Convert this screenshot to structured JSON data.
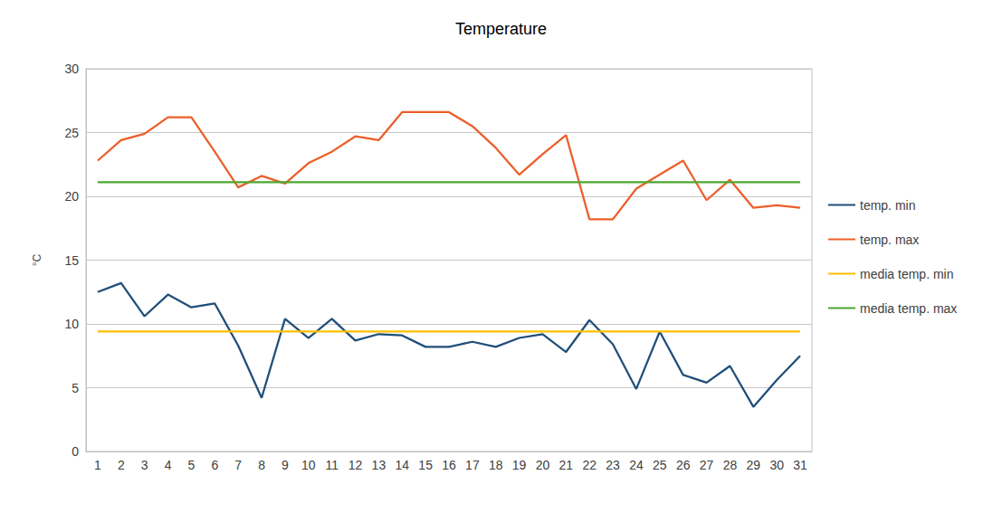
{
  "chart_data": {
    "type": "line",
    "title": "Temperature",
    "y_label": "°C",
    "categories": [
      "1",
      "2",
      "3",
      "4",
      "5",
      "6",
      "7",
      "8",
      "9",
      "10",
      "11",
      "12",
      "13",
      "14",
      "15",
      "16",
      "17",
      "18",
      "19",
      "20",
      "21",
      "22",
      "23",
      "24",
      "25",
      "26",
      "27",
      "28",
      "29",
      "30",
      "31"
    ],
    "series": [
      {
        "name": "temp. min",
        "color": "#1f4e79",
        "values": [
          12.5,
          13.2,
          10.6,
          12.3,
          11.3,
          11.6,
          8.3,
          4.2,
          10.4,
          8.9,
          10.4,
          8.7,
          9.2,
          9.1,
          8.2,
          8.2,
          8.6,
          8.2,
          8.9,
          9.2,
          7.8,
          10.3,
          8.4,
          4.9,
          9.4,
          6.0,
          5.4,
          6.7,
          3.5,
          5.6,
          7.5
        ]
      },
      {
        "name": "temp. max",
        "color": "#ed5e29",
        "values": [
          22.8,
          24.4,
          24.9,
          26.2,
          26.2,
          23.5,
          20.7,
          21.6,
          21.0,
          22.6,
          23.5,
          24.7,
          24.4,
          26.6,
          26.6,
          26.6,
          25.5,
          23.8,
          21.7,
          23.3,
          24.8,
          18.2,
          18.2,
          20.6,
          21.7,
          22.8,
          19.7,
          21.3,
          19.1,
          19.3,
          19.1
        ]
      },
      {
        "name": "media temp. min",
        "color": "#ffc000",
        "values": [
          9.4,
          9.4,
          9.4,
          9.4,
          9.4,
          9.4,
          9.4,
          9.4,
          9.4,
          9.4,
          9.4,
          9.4,
          9.4,
          9.4,
          9.4,
          9.4,
          9.4,
          9.4,
          9.4,
          9.4,
          9.4,
          9.4,
          9.4,
          9.4,
          9.4,
          9.4,
          9.4,
          9.4,
          9.4,
          9.4,
          9.4
        ]
      },
      {
        "name": "media temp. max",
        "color": "#4ea72e",
        "values": [
          21.1,
          21.1,
          21.1,
          21.1,
          21.1,
          21.1,
          21.1,
          21.1,
          21.1,
          21.1,
          21.1,
          21.1,
          21.1,
          21.1,
          21.1,
          21.1,
          21.1,
          21.1,
          21.1,
          21.1,
          21.1,
          21.1,
          21.1,
          21.1,
          21.1,
          21.1,
          21.1,
          21.1,
          21.1,
          21.1,
          21.1
        ]
      }
    ],
    "ylim": [
      0,
      30
    ],
    "yticks": [
      0,
      5,
      10,
      15,
      20,
      25,
      30
    ],
    "grid": true,
    "legend": "right"
  }
}
